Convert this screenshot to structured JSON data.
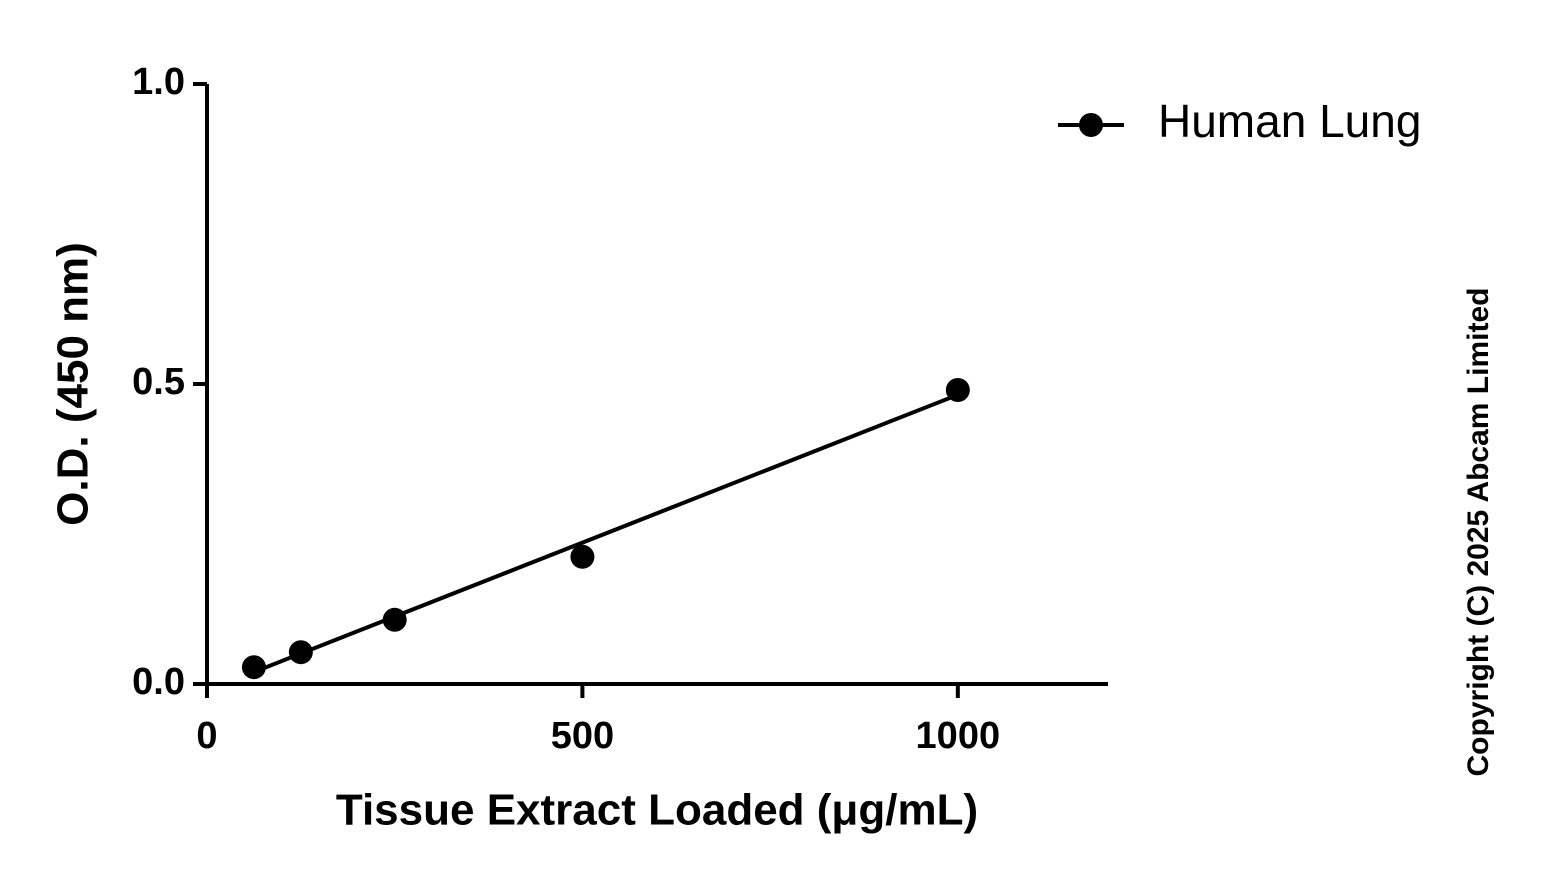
{
  "chart_data": {
    "type": "scatter",
    "x_label": "Tissue Extract Loaded (μg/mL)",
    "y_label": "O.D. (450 nm)",
    "copyright": "Copyright (C) 2025 Abcam Limited",
    "xlim": [
      0,
      1200
    ],
    "ylim": [
      0,
      1
    ],
    "xticks": [
      0,
      500,
      1000
    ],
    "yticks": [
      {
        "value": 0,
        "label": "0.0"
      },
      {
        "value": 0.5,
        "label": "0.5"
      },
      {
        "value": 1,
        "label": "1.0"
      }
    ],
    "legend": "top-right",
    "series": [
      {
        "name": "Human Lung",
        "color": "#000000",
        "x": [
          62.5,
          125,
          250,
          500,
          1000
        ],
        "values": [
          0.028,
          0.053,
          0.107,
          0.212,
          0.49
        ]
      }
    ],
    "fit": {
      "x": [
        62.5,
        1000
      ],
      "values": [
        0.02,
        0.482
      ]
    }
  }
}
